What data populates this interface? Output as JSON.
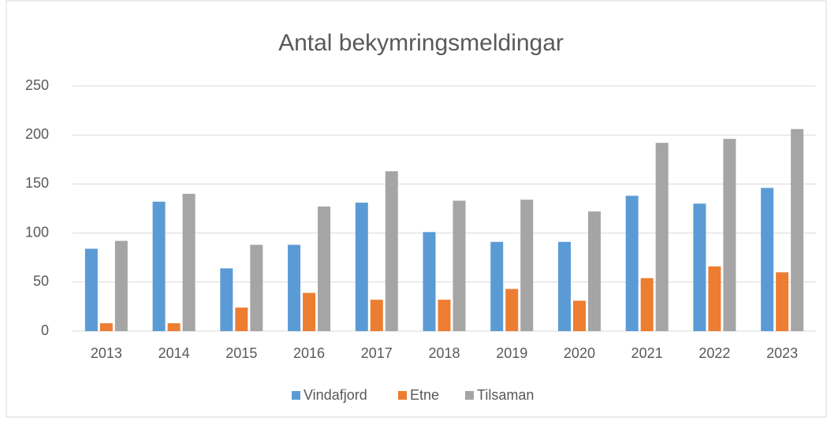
{
  "chart_data": {
    "type": "bar",
    "title": "Antal bekymringsmeldingar",
    "categories": [
      "2013",
      "2014",
      "2015",
      "2016",
      "2017",
      "2018",
      "2019",
      "2020",
      "2021",
      "2022",
      "2023"
    ],
    "series": [
      {
        "name": "Vindafjord",
        "color": "#5b9bd5",
        "values": [
          84,
          132,
          64,
          88,
          131,
          101,
          91,
          91,
          138,
          130,
          146
        ]
      },
      {
        "name": "Etne",
        "color": "#ed7d31",
        "values": [
          8,
          8,
          24,
          39,
          32,
          32,
          43,
          31,
          54,
          66,
          60
        ]
      },
      {
        "name": "Tilsaman",
        "color": "#a5a5a5",
        "values": [
          92,
          140,
          88,
          127,
          163,
          133,
          134,
          122,
          192,
          196,
          206
        ]
      }
    ],
    "ylim": [
      0,
      250
    ],
    "yticks": [
      0,
      50,
      100,
      150,
      200,
      250
    ],
    "grid": true,
    "legend": "bottom"
  }
}
